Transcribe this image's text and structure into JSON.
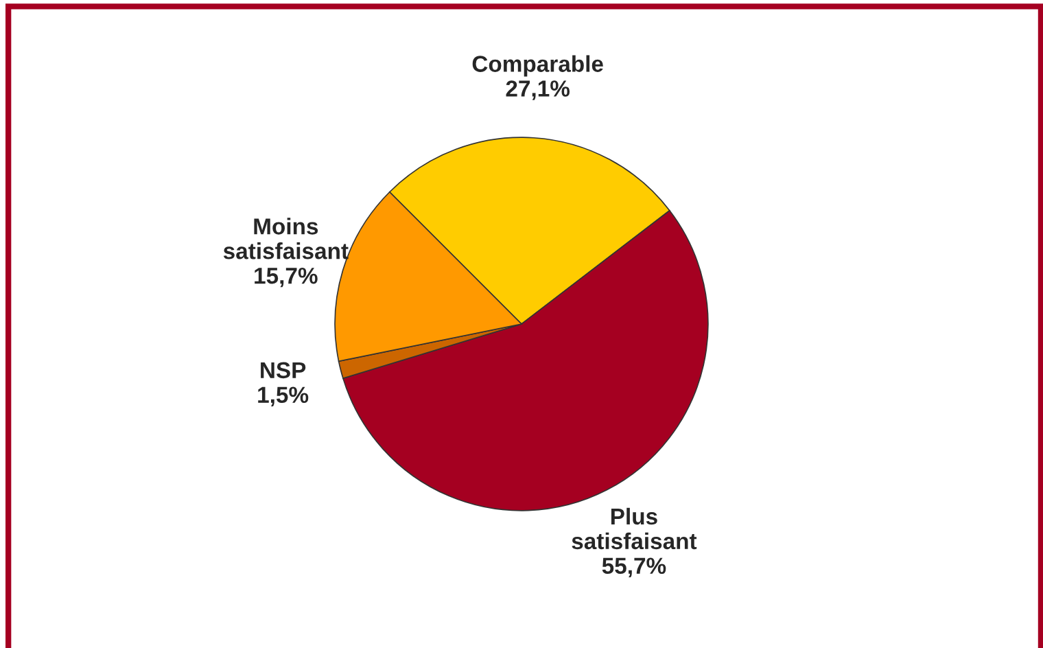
{
  "chart_data": {
    "type": "pie",
    "categories": [
      "Comparable",
      "Plus satisfaisant",
      "NSP",
      "Moins satisfaisant"
    ],
    "values": [
      27.1,
      55.7,
      1.5,
      15.7
    ],
    "value_labels": [
      "27,1%",
      "55,7%",
      "1,5%",
      "15,7%"
    ],
    "colors": [
      "#ffcc00",
      "#a50021",
      "#cc6600",
      "#ff9900"
    ],
    "legend": false
  }
}
